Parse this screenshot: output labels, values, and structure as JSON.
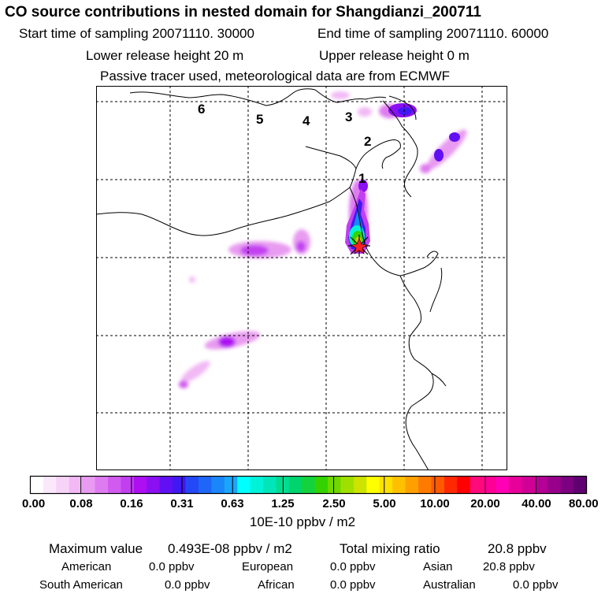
{
  "header": {
    "title": "CO  source contributions in nested domain for Shangdianzi_200711",
    "start_label": "Start time of sampling 20071110. 30000",
    "end_label": "End time of sampling 20071110. 60000",
    "lower_label": "Lower release height   20 m",
    "upper_label": "Upper release height    0 m",
    "tracer_label": "Passive tracer used, meteorological data are from ECMWF"
  },
  "map": {
    "region_labels": [
      "6",
      "5",
      "4",
      "3",
      "2",
      "1"
    ],
    "receptor_marker": "star-marker"
  },
  "colorbar": {
    "colors": [
      "#ffffff",
      "#fbe9fb",
      "#f7d3f8",
      "#f2b9f5",
      "#e89bf0",
      "#de7bf0",
      "#d25bef",
      "#c23ff0",
      "#ad0ff2",
      "#8a0ff2",
      "#6010f2",
      "#4018f2",
      "#2448f5",
      "#1e66f7",
      "#1a86fa",
      "#1aa6fc",
      "#00ffff",
      "#00f2d8",
      "#00e6b8",
      "#00dc90",
      "#00d46c",
      "#14d23c",
      "#34d200",
      "#70d800",
      "#a0e000",
      "#cce400",
      "#ffff00",
      "#ffe000",
      "#ffc000",
      "#ffa000",
      "#ff7a00",
      "#ff5a00",
      "#ff2800",
      "#ff0000",
      "#ff0a7a",
      "#ff0096",
      "#ff00b4",
      "#e8009a",
      "#d00096",
      "#b40094",
      "#98008c",
      "#7c0080",
      "#600070"
    ],
    "ticks": [
      "0.00",
      "0.08",
      "0.16",
      "0.31",
      "0.63",
      "1.25",
      "2.50",
      "5.00",
      "10.00",
      "20.00",
      "40.00",
      "80.00"
    ],
    "units": "10E-10 ppbv / m2"
  },
  "stats": {
    "max_label": "Maximum value",
    "max_value": "0.493E-08 ppbv / m2",
    "total_label": "Total mixing ratio",
    "total_value": "20.8 ppbv",
    "rows": [
      [
        {
          "label": "American",
          "value": "0.0 ppbv"
        },
        {
          "label": "European",
          "value": "0.0 ppbv"
        },
        {
          "label": "Asian",
          "value": "20.8 ppbv"
        }
      ],
      [
        {
          "label": "South American",
          "value": "0.0 ppbv"
        },
        {
          "label": "African",
          "value": "0.0 ppbv"
        },
        {
          "label": "Australian",
          "value": "0.0 ppbv"
        }
      ]
    ]
  }
}
